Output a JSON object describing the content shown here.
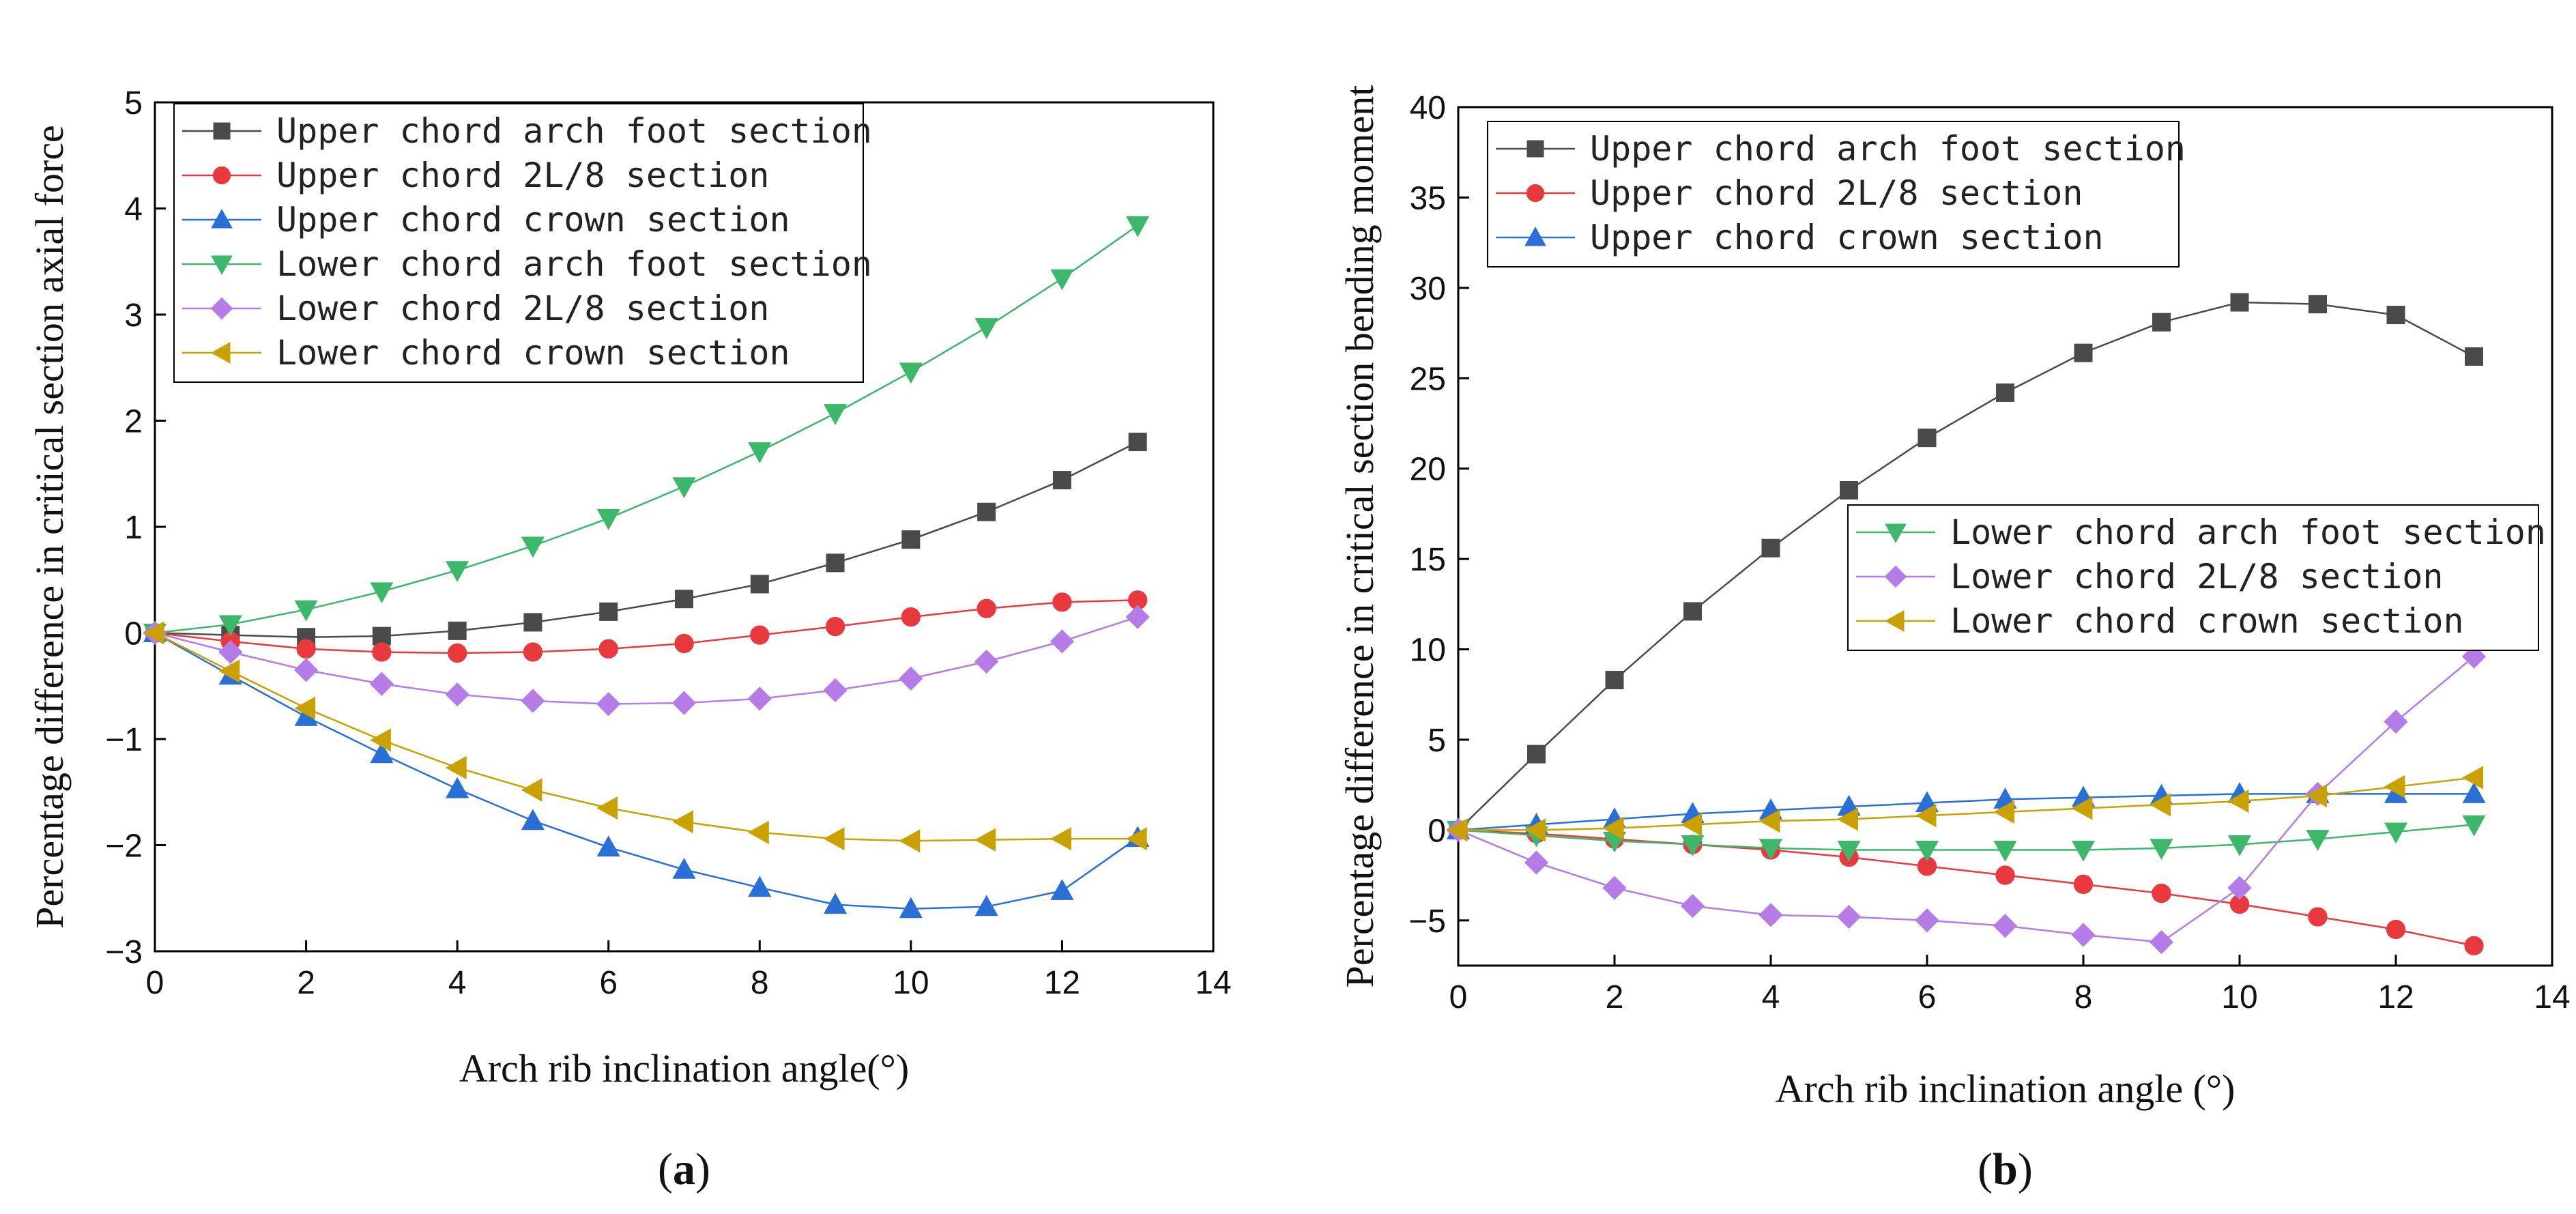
{
  "chart_data": [
    {
      "panel_label": "(a)",
      "type": "line",
      "xlabel": "Arch rib inclination angle(°)",
      "ylabel": "Percentage difference in critical section axial force",
      "xlim": [
        0,
        14
      ],
      "ylim": [
        -3,
        5
      ],
      "xticks": [
        0,
        2,
        4,
        6,
        8,
        10,
        12,
        14
      ],
      "yticks": [
        -3,
        -2,
        -1,
        0,
        1,
        2,
        3,
        4,
        5
      ],
      "ytick_labels": [
        "−3",
        "−2",
        "−1",
        "0",
        "1",
        "2",
        "3",
        "4",
        "5"
      ],
      "x": [
        0,
        1,
        2,
        3,
        4,
        5,
        6,
        7,
        8,
        9,
        10,
        11,
        12,
        13
      ],
      "legends": [
        {
          "placement": "top-left",
          "series": [
            0,
            1,
            2,
            3,
            4,
            5
          ]
        }
      ],
      "series": [
        {
          "name": "Upper chord arch foot section",
          "marker": "square",
          "color": "#4a4a4a",
          "values": [
            0,
            -0.02,
            -0.04,
            -0.03,
            0.02,
            0.1,
            0.2,
            0.32,
            0.46,
            0.66,
            0.88,
            1.14,
            1.44,
            1.8
          ]
        },
        {
          "name": "Upper chord 2L/8 section",
          "marker": "circle",
          "color": "#e8393e",
          "values": [
            0,
            -0.08,
            -0.15,
            -0.18,
            -0.19,
            -0.18,
            -0.15,
            -0.1,
            -0.02,
            0.06,
            0.15,
            0.23,
            0.29,
            0.31
          ]
        },
        {
          "name": "Upper chord crown section",
          "marker": "triangle-up",
          "color": "#2a6fd6",
          "values": [
            0,
            -0.4,
            -0.79,
            -1.14,
            -1.47,
            -1.77,
            -2.02,
            -2.23,
            -2.4,
            -2.56,
            -2.6,
            -2.58,
            -2.43,
            -1.93
          ]
        },
        {
          "name": "Lower chord arch foot section",
          "marker": "triangle-down",
          "color": "#3db86b",
          "values": [
            0,
            0.08,
            0.22,
            0.39,
            0.59,
            0.82,
            1.08,
            1.38,
            1.71,
            2.07,
            2.46,
            2.88,
            3.34,
            3.84
          ]
        },
        {
          "name": "Lower chord 2L/8 section",
          "marker": "diamond",
          "color": "#b57be6",
          "values": [
            0,
            -0.18,
            -0.35,
            -0.48,
            -0.58,
            -0.64,
            -0.67,
            -0.66,
            -0.62,
            -0.54,
            -0.43,
            -0.27,
            -0.08,
            0.15
          ]
        },
        {
          "name": "Lower chord crown section",
          "marker": "triangle-left",
          "color": "#c9a100",
          "values": [
            0,
            -0.36,
            -0.71,
            -1.01,
            -1.27,
            -1.48,
            -1.65,
            -1.78,
            -1.88,
            -1.94,
            -1.96,
            -1.95,
            -1.94,
            -1.94
          ]
        }
      ]
    },
    {
      "panel_label": "(b)",
      "type": "line",
      "xlabel": "Arch rib inclination angle (°)",
      "ylabel": "Percentage difference in critical section bending moment",
      "xlim": [
        0,
        14
      ],
      "ylim": [
        -7.5,
        40
      ],
      "xticks": [
        0,
        2,
        4,
        6,
        8,
        10,
        12,
        14
      ],
      "yticks": [
        -5,
        0,
        5,
        10,
        15,
        20,
        25,
        30,
        35,
        40
      ],
      "ytick_labels": [
        "−5",
        "0",
        "5",
        "10",
        "15",
        "20",
        "25",
        "30",
        "35",
        "40"
      ],
      "x": [
        0,
        1,
        2,
        3,
        4,
        5,
        6,
        7,
        8,
        9,
        10,
        11,
        12,
        13
      ],
      "legends": [
        {
          "placement": "top-left",
          "series": [
            0,
            1,
            2
          ]
        },
        {
          "placement": "center-right",
          "series": [
            3,
            4,
            5
          ]
        }
      ],
      "series": [
        {
          "name": "Upper chord arch foot section",
          "marker": "square",
          "color": "#4a4a4a",
          "values": [
            0,
            4.2,
            8.3,
            12.1,
            15.6,
            18.8,
            21.7,
            24.2,
            26.4,
            28.1,
            29.2,
            29.1,
            28.5,
            26.2
          ]
        },
        {
          "name": "Upper chord 2L/8 section",
          "marker": "circle",
          "color": "#e8393e",
          "values": [
            0,
            -0.2,
            -0.5,
            -0.8,
            -1.1,
            -1.5,
            -2.0,
            -2.5,
            -3.0,
            -3.5,
            -4.1,
            -4.8,
            -5.5,
            -6.4
          ]
        },
        {
          "name": "Upper chord crown section",
          "marker": "triangle-up",
          "color": "#2a6fd6",
          "values": [
            0,
            0.3,
            0.6,
            0.9,
            1.1,
            1.3,
            1.5,
            1.7,
            1.8,
            1.9,
            2.0,
            2.0,
            2.0,
            2.0
          ]
        },
        {
          "name": "Lower chord arch foot section",
          "marker": "triangle-down",
          "color": "#3db86b",
          "values": [
            0,
            -0.3,
            -0.6,
            -0.8,
            -1.0,
            -1.1,
            -1.1,
            -1.1,
            -1.1,
            -1.0,
            -0.8,
            -0.5,
            -0.1,
            0.3
          ]
        },
        {
          "name": "Lower chord 2L/8 section",
          "marker": "diamond",
          "color": "#b57be6",
          "values": [
            0,
            -1.8,
            -3.2,
            -4.2,
            -4.7,
            -4.8,
            -5.0,
            -5.3,
            -5.8,
            -6.2,
            -3.2,
            2.0,
            6.0,
            9.6
          ]
        },
        {
          "name": "Lower chord crown section",
          "marker": "triangle-left",
          "color": "#c9a100",
          "values": [
            0,
            0.0,
            0.1,
            0.3,
            0.5,
            0.6,
            0.8,
            1.0,
            1.2,
            1.4,
            1.6,
            1.9,
            2.4,
            2.9
          ]
        }
      ]
    }
  ]
}
